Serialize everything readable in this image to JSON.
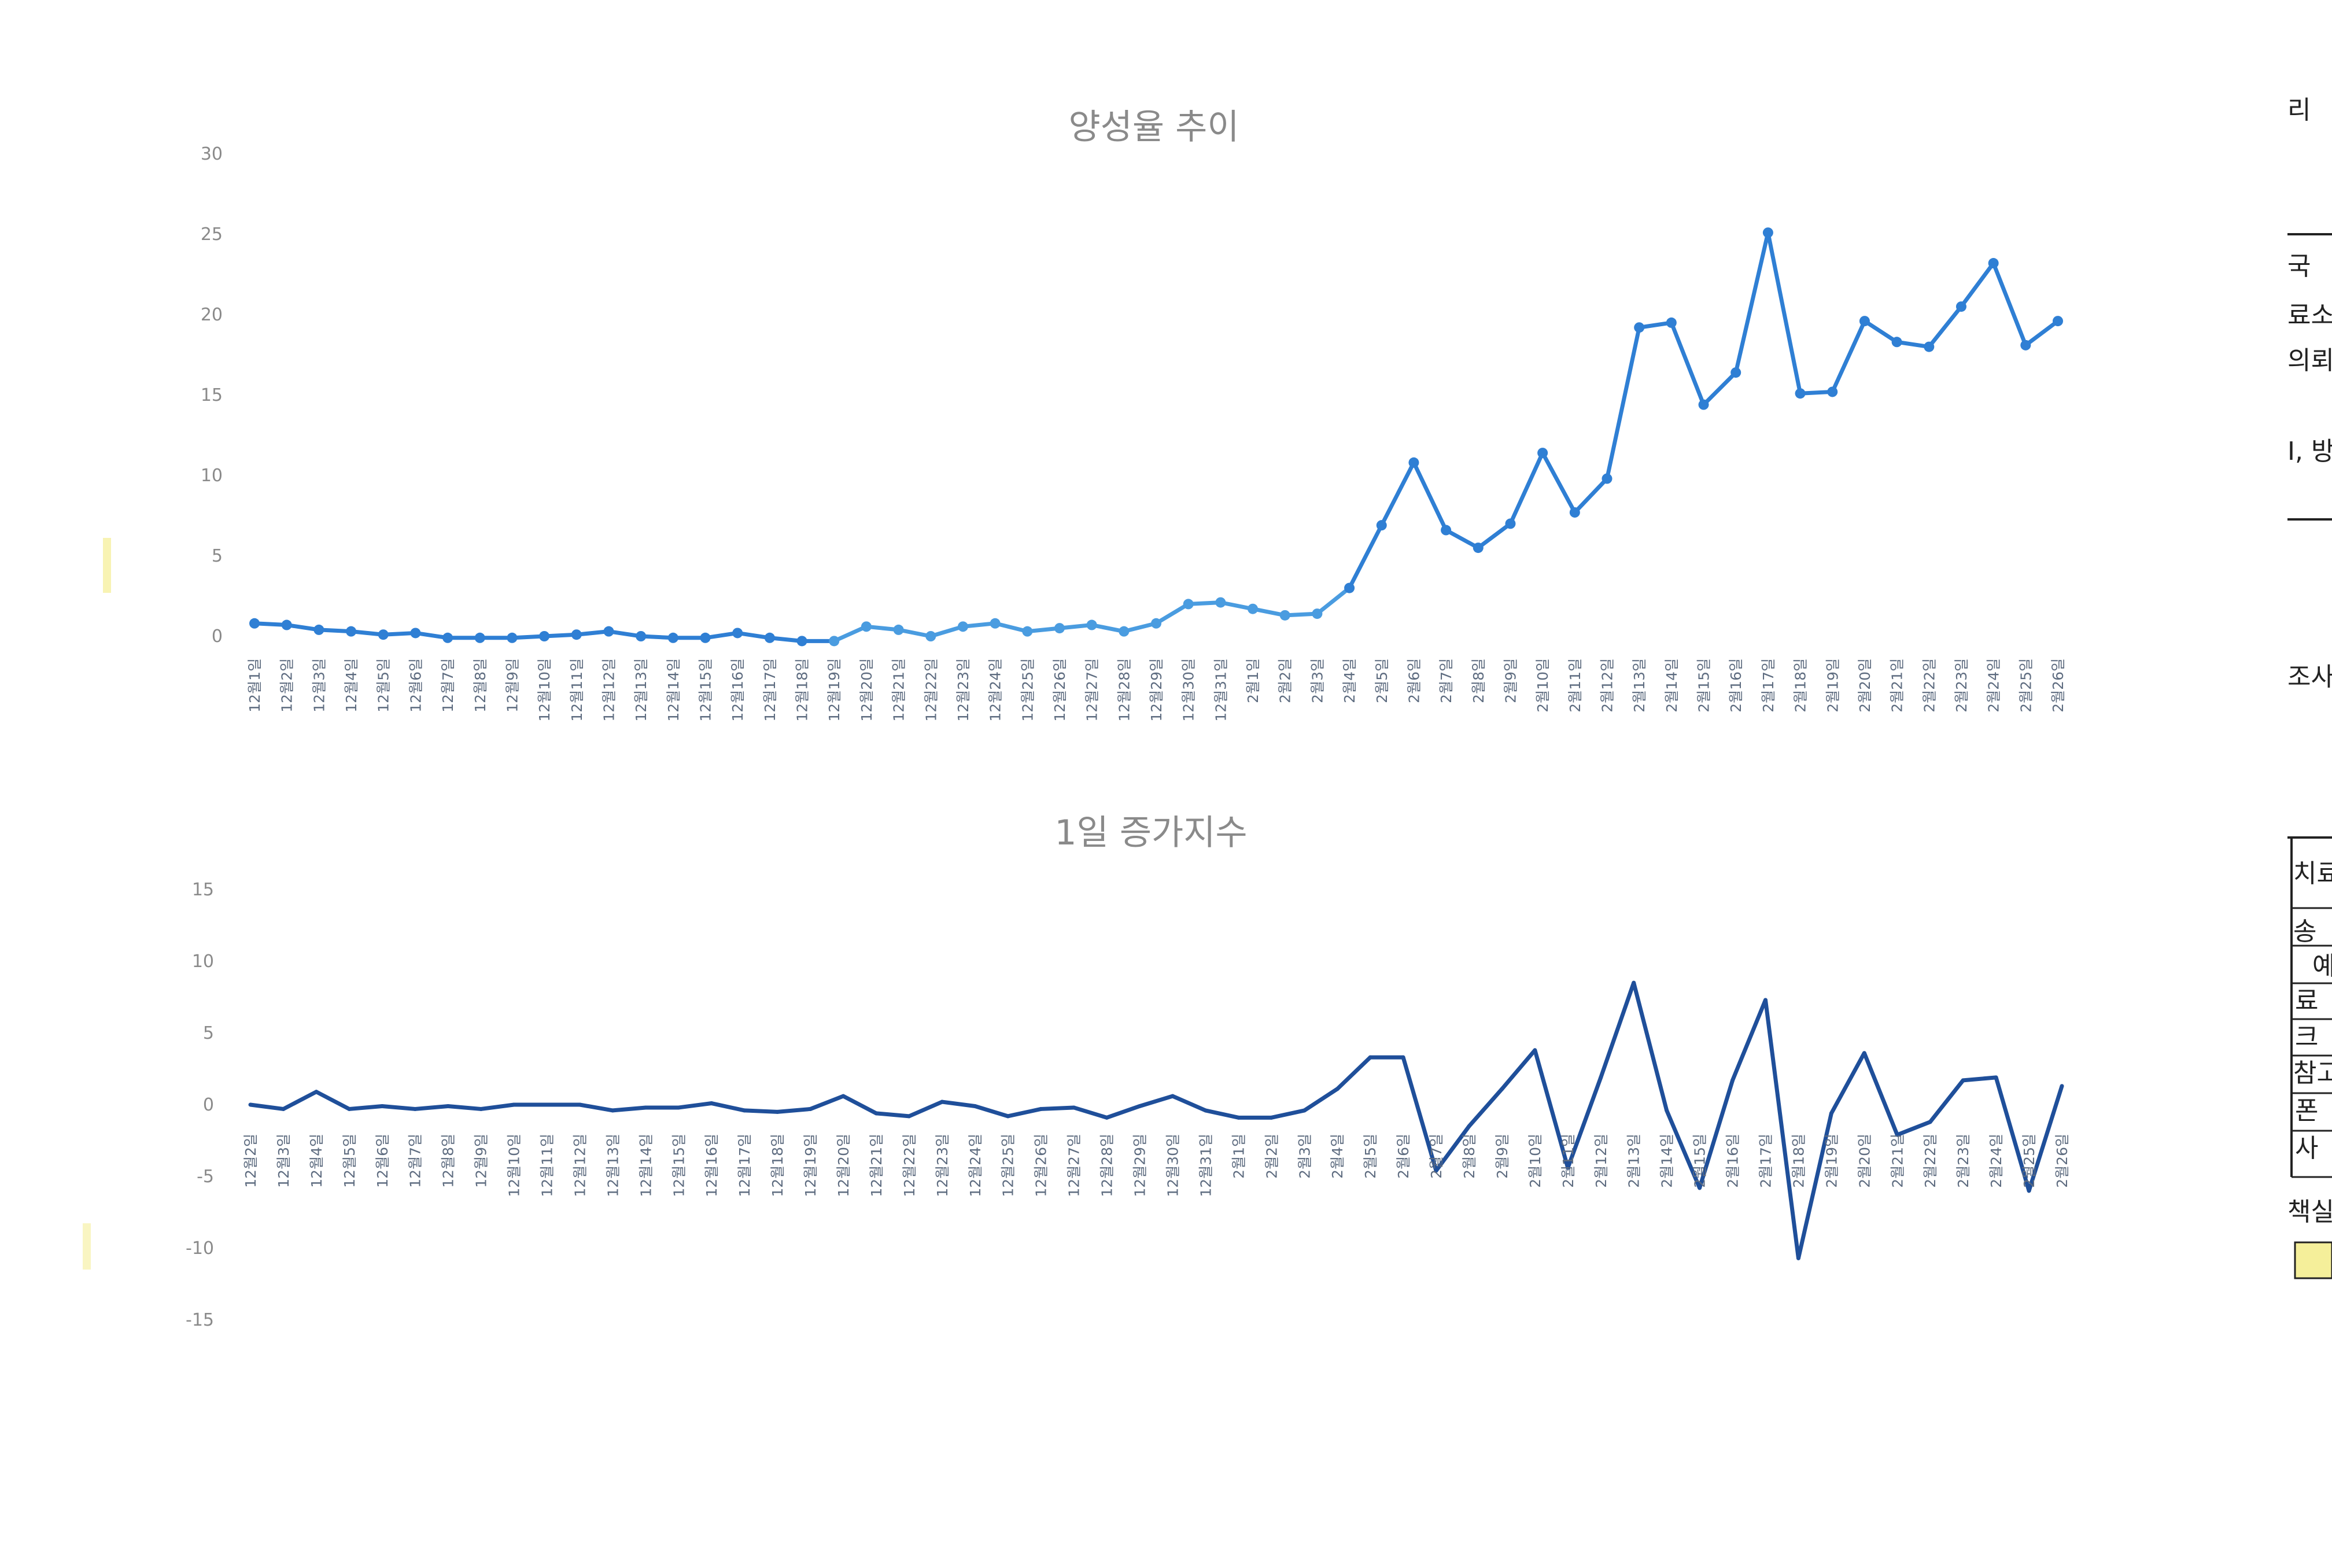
{
  "charts": {
    "positivity": {
      "title": "양성율 추이",
      "y_ticks": [
        "30",
        "25",
        "20",
        "15",
        "10",
        "5",
        "0"
      ]
    },
    "daily_change": {
      "title": "1일 증가지수",
      "y_ticks": [
        "15",
        "10",
        "5",
        "0",
        "-5",
        "-10",
        "-15"
      ]
    }
  },
  "right_edge_fragments": [
    "리",
    "국",
    "료소",
    "의뢰",
    "I, 방",
    "조사",
    "치료",
    "송",
    "예",
    "료",
    "크",
    "참고",
    "폰",
    "사",
    "책실"
  ],
  "colors": {
    "line_light": "#4a9ce0",
    "line_mid": "#2f7fd4",
    "line_dark": "#1f4f9a",
    "axis_text": "#8a8a8a",
    "highlight": "#f5ef9a"
  },
  "chart_data": [
    {
      "type": "line",
      "title": "양성율 추이",
      "ylim": [
        0,
        30
      ],
      "y_ticks": [
        0,
        5,
        10,
        15,
        20,
        25,
        30
      ],
      "grid": false,
      "markers": true,
      "categories": [
        "12월1일",
        "12월2일",
        "12월3일",
        "12월4일",
        "12월5일",
        "12월6일",
        "12월7일",
        "12월8일",
        "12월9일",
        "12월10일",
        "12월11일",
        "12월12일",
        "12월13일",
        "12월14일",
        "12월15일",
        "12월16일",
        "12월17일",
        "12월18일",
        "12월19일",
        "12월20일",
        "12월21일",
        "12월22일",
        "12월23일",
        "12월24일",
        "12월25일",
        "12월26일",
        "12월27일",
        "12월28일",
        "12월29일",
        "12월30일",
        "12월31일",
        "2월1일",
        "2월2일",
        "2월3일",
        "2월4일",
        "2월5일",
        "2월6일",
        "2월7일",
        "2월8일",
        "2월9일",
        "2월10일",
        "2월11일",
        "2월12일",
        "2월13일",
        "2월14일",
        "2월15일",
        "2월16일",
        "2월17일",
        "2월18일",
        "2월19일",
        "2월20일",
        "2월21일",
        "2월22일",
        "2월23일",
        "2월24일",
        "2월25일",
        "2월26일"
      ],
      "series": [
        {
          "values": [
            0.8,
            0.7,
            0.4,
            0.3,
            0.1,
            0.2,
            -0.1,
            -0.1,
            -0.1,
            0.0,
            0.1,
            0.3,
            0.0,
            -0.1,
            -0.1,
            0.2,
            -0.1,
            -0.3,
            -0.3,
            0.6,
            0.4,
            0.0,
            0.6,
            0.8,
            0.3,
            0.5,
            0.7,
            0.3,
            0.8,
            2.0,
            2.1,
            1.7,
            1.3,
            1.4,
            3.0,
            6.9,
            10.8,
            6.6,
            5.5,
            7.0,
            11.4,
            7.7,
            9.8,
            19.2,
            19.5,
            14.4,
            16.4,
            25.1,
            15.1,
            15.2,
            19.6,
            18.3,
            18.0,
            20.5,
            23.2,
            18.1,
            19.6
          ]
        }
      ]
    },
    {
      "type": "line",
      "title": "1일 증가지수",
      "ylim": [
        -15,
        15
      ],
      "y_ticks": [
        -15,
        -10,
        -5,
        0,
        5,
        10,
        15
      ],
      "grid": false,
      "markers": false,
      "categories": [
        "12월2일",
        "12월3일",
        "12월4일",
        "12월5일",
        "12월6일",
        "12월7일",
        "12월8일",
        "12월9일",
        "12월10일",
        "12월11일",
        "12월12일",
        "12월13일",
        "12월14일",
        "12월15일",
        "12월16일",
        "12월17일",
        "12월18일",
        "12월19일",
        "12월20일",
        "12월21일",
        "12월22일",
        "12월23일",
        "12월24일",
        "12월25일",
        "12월26일",
        "12월27일",
        "12월28일",
        "12월29일",
        "12월30일",
        "12월31일",
        "2월1일",
        "2월2일",
        "2월3일",
        "2월4일",
        "2월5일",
        "2월6일",
        "2월7일",
        "2월8일",
        "2월9일",
        "2월10일",
        "2월11일",
        "2월12일",
        "2월13일",
        "2월14일",
        "2월15일",
        "2월16일",
        "2월17일",
        "2월18일",
        "2월19일",
        "2월20일",
        "2월21일",
        "2월22일",
        "2월23일",
        "2월24일",
        "2월25일",
        "2월26일"
      ],
      "series": [
        {
          "values": [
            0.0,
            -0.3,
            0.9,
            -0.3,
            -0.1,
            -0.3,
            -0.1,
            -0.3,
            0.0,
            0.0,
            0.0,
            -0.4,
            -0.2,
            -0.2,
            0.1,
            -0.4,
            -0.5,
            -0.3,
            0.6,
            -0.6,
            -0.8,
            0.2,
            -0.1,
            -0.8,
            -0.3,
            -0.2,
            -0.9,
            -0.1,
            0.6,
            -0.4,
            -0.9,
            -0.9,
            -0.4,
            1.1,
            3.3,
            3.3,
            -4.6,
            -1.5,
            1.1,
            3.8,
            -4.4,
            1.9,
            8.5,
            -0.4,
            -5.8,
            1.7,
            7.3,
            -10.7,
            -0.6,
            3.6,
            -2.1,
            -1.2,
            1.7,
            1.9,
            -6.0,
            1.3
          ]
        }
      ]
    }
  ]
}
